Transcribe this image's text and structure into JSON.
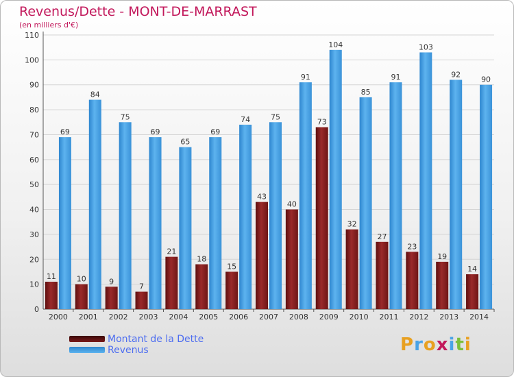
{
  "chart_data": {
    "type": "bar",
    "title": "Revenus/Dette - MONT-DE-MARRAST",
    "subtitle": "(en milliers d'€)",
    "categories": [
      "2000",
      "2001",
      "2002",
      "2003",
      "2004",
      "2005",
      "2006",
      "2007",
      "2008",
      "2009",
      "2010",
      "2011",
      "2012",
      "2013",
      "2014"
    ],
    "series": [
      {
        "name": "Montant de la Dette",
        "values": [
          11,
          10,
          9,
          7,
          21,
          18,
          15,
          43,
          40,
          73,
          32,
          27,
          23,
          19,
          14
        ],
        "color": "#7a1a1a"
      },
      {
        "name": "Revenus",
        "values": [
          69,
          84,
          75,
          69,
          65,
          69,
          74,
          75,
          91,
          104,
          85,
          91,
          103,
          92,
          90
        ],
        "color": "#4aa3e6"
      }
    ],
    "ylim": [
      0,
      110
    ],
    "yticks": [
      0,
      10,
      20,
      30,
      40,
      50,
      60,
      70,
      80,
      90,
      100,
      110
    ],
    "grid": true,
    "legend_position": "bottom-left"
  },
  "branding": {
    "logo_letters": [
      "P",
      "r",
      "o",
      "x",
      "i",
      "t",
      "i"
    ],
    "logo_colors": [
      "#e8a020",
      "#4aa3e6",
      "#e8a020",
      "#c2185b",
      "#4aa3e6",
      "#7bbf3a",
      "#e8a020"
    ]
  }
}
